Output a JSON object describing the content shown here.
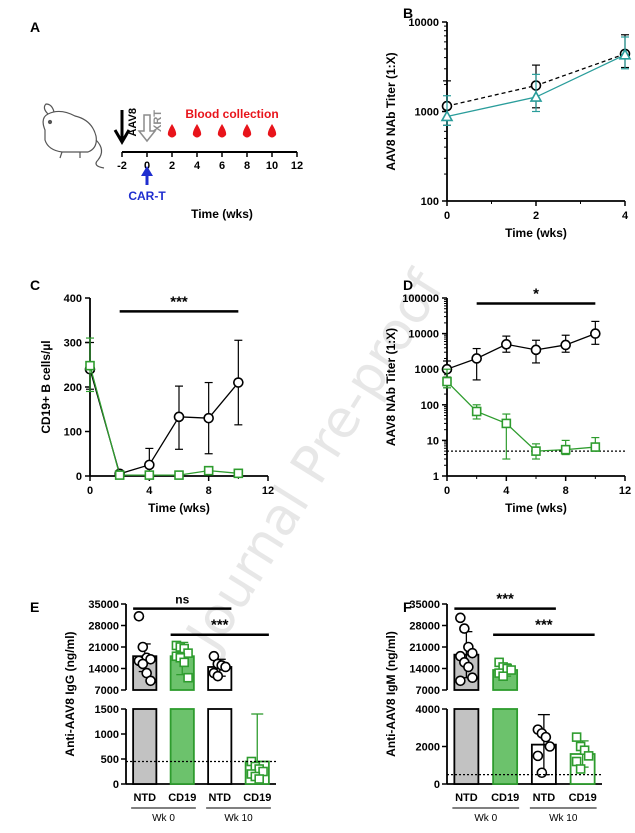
{
  "watermark": "Journal Pre-proof",
  "panel_a": {
    "label": "A",
    "aav8": "AAV8",
    "xrt": "XRT",
    "blood": "Blood collection",
    "cart": "CAR-T",
    "xlabel": "Time (wks)",
    "ticks": [
      "-2",
      "0",
      "2",
      "4",
      "6",
      "8",
      "10",
      "12"
    ],
    "drop_weeks": [
      2,
      4,
      6,
      8,
      10
    ],
    "colors": {
      "blood": "#e8141b",
      "cart": "#1f2ecf",
      "xrt": "#8c8c8c"
    }
  },
  "chart_data": [
    {
      "id": "B",
      "label": "B",
      "type": "line",
      "ylabel": "AAV8 NAb Titer (1:X)",
      "xlabel": "Time (wks)",
      "yscale": "log",
      "ylim": [
        100,
        10000
      ],
      "xlim": [
        0,
        4
      ],
      "xticks": [
        "0",
        "2",
        "4"
      ],
      "yticks": [
        "100",
        "1000",
        "10000"
      ],
      "series": [
        {
          "color": "#000000",
          "dashed": true,
          "marker": "circle",
          "x": [
            0,
            2,
            4
          ],
          "y": [
            1150,
            1950,
            4400
          ],
          "err_hi": [
            2200,
            3300,
            7200
          ],
          "err_lo": [
            700,
            1100,
            3100
          ]
        },
        {
          "color": "#2a9d9b",
          "dashed": false,
          "marker": "triangle",
          "x": [
            0,
            2,
            4
          ],
          "y": [
            880,
            1450,
            4300
          ],
          "err_hi": [
            1500,
            2600,
            6800
          ],
          "err_lo": [
            700,
            1000,
            3000
          ]
        }
      ]
    },
    {
      "id": "C",
      "label": "C",
      "type": "line",
      "ylabel": "CD19+ B cells/µl",
      "xlabel": "Time (wks)",
      "ylim": [
        0,
        400
      ],
      "xlim": [
        0,
        12
      ],
      "xticks": [
        "0",
        "4",
        "8",
        "12"
      ],
      "yticks": [
        "0",
        "100",
        "200",
        "300",
        "400"
      ],
      "sig": "***",
      "sig_range": [
        2,
        10
      ],
      "sig_y": 370,
      "series": [
        {
          "color": "#000000",
          "marker": "circle",
          "x": [
            0,
            2,
            4,
            6,
            8,
            10
          ],
          "y": [
            240,
            5,
            25,
            133,
            130,
            210
          ],
          "err_hi": [
            300,
            9,
            62,
            202,
            210,
            305
          ],
          "err_lo": [
            195,
            1,
            0,
            60,
            50,
            115
          ]
        },
        {
          "color": "#2e9c2e",
          "marker": "square",
          "x": [
            0,
            2,
            4,
            6,
            8,
            10
          ],
          "y": [
            248,
            2,
            2,
            2,
            12,
            6
          ],
          "err_hi": [
            310,
            4,
            4,
            4,
            18,
            10
          ],
          "err_lo": [
            190,
            0,
            0,
            0,
            6,
            2
          ]
        }
      ]
    },
    {
      "id": "D",
      "label": "D",
      "type": "line",
      "ylabel": "AAV8 NAb Titer (1:X)",
      "xlabel": "Time (wks)",
      "yscale": "log",
      "ylim": [
        1,
        100000
      ],
      "xlim": [
        0,
        12
      ],
      "xticks": [
        "0",
        "4",
        "8",
        "12"
      ],
      "yticks": [
        "1",
        "10",
        "100",
        "1000",
        "10000",
        "100000"
      ],
      "sig": "*",
      "sig_range": [
        2,
        10
      ],
      "sig_y": 70000,
      "dotted_y": 5,
      "series": [
        {
          "color": "#000000",
          "marker": "circle",
          "x": [
            0,
            2,
            4,
            6,
            8,
            10
          ],
          "y": [
            1000,
            2000,
            5000,
            3500,
            4800,
            10000
          ],
          "err_hi": [
            1700,
            3800,
            8500,
            6500,
            9000,
            22000
          ],
          "err_lo": [
            600,
            500,
            3000,
            1500,
            3000,
            5000
          ]
        },
        {
          "color": "#2e9c2e",
          "marker": "square",
          "x": [
            0,
            2,
            4,
            6,
            8,
            10
          ],
          "y": [
            450,
            65,
            30,
            5,
            5.5,
            6.5
          ],
          "err_hi": [
            1000,
            100,
            55,
            8,
            10,
            12
          ],
          "err_lo": [
            300,
            40,
            3,
            3,
            4,
            5
          ]
        }
      ]
    },
    {
      "id": "E",
      "label": "E",
      "type": "bar",
      "ylabel": "Anti-AAV8 IgG (ng/ml)",
      "categories": [
        "NTD",
        "CD19",
        "NTD",
        "CD19"
      ],
      "groups": [
        {
          "label": "Wk 0",
          "span": [
            0,
            1
          ]
        },
        {
          "label": "Wk 10",
          "span": [
            2,
            3
          ]
        }
      ],
      "upper": {
        "range": [
          7000,
          35000
        ],
        "ticks": [
          "7000",
          "14000",
          "21000",
          "28000",
          "35000"
        ]
      },
      "lower": {
        "range": [
          0,
          1500
        ],
        "ticks": [
          "0",
          "500",
          "1000",
          "1500"
        ]
      },
      "dotted_y": 450,
      "values": [
        18000,
        18000,
        14500,
        450
      ],
      "err_hi": [
        22000,
        22500,
        17000,
        1400
      ],
      "err_lo": [
        13000,
        12000,
        11500,
        150
      ],
      "fills": [
        "#c2c2c2",
        "#6cc26c",
        "#ffffff",
        "#ffffff"
      ],
      "edges": [
        "#000000",
        "#2e9c2e",
        "#000000",
        "#2e9c2e"
      ],
      "points": [
        [
          31000,
          21000,
          17500,
          17000,
          16500,
          15500,
          12500,
          10000
        ],
        [
          21500,
          21000,
          20500,
          19000,
          18000,
          17500,
          16000,
          11000
        ],
        [
          18000,
          15500,
          15000,
          14500,
          12500,
          11500
        ],
        [
          450,
          350,
          300,
          250,
          200,
          150,
          100
        ]
      ],
      "comparisons": [
        {
          "label": "ns",
          "from": 0,
          "to": 2,
          "y": 33500
        },
        {
          "label": "***",
          "from": 1,
          "to": 3,
          "y": 25000
        }
      ]
    },
    {
      "id": "F",
      "label": "F",
      "type": "bar",
      "ylabel": "Anti-AAV8 IgM (ng/ml)",
      "categories": [
        "NTD",
        "CD19",
        "NTD",
        "CD19"
      ],
      "groups": [
        {
          "label": "Wk 0",
          "span": [
            0,
            1
          ]
        },
        {
          "label": "Wk 10",
          "span": [
            2,
            3
          ]
        }
      ],
      "upper": {
        "range": [
          7000,
          35000
        ],
        "ticks": [
          "7000",
          "14000",
          "21000",
          "28000",
          "35000"
        ]
      },
      "lower": {
        "range": [
          0,
          4000
        ],
        "ticks": [
          "0",
          "2000",
          "4000"
        ]
      },
      "dotted_y": 500,
      "values": [
        18500,
        13500,
        2100,
        1600
      ],
      "err_hi": [
        26000,
        15500,
        3700,
        2300
      ],
      "err_lo": [
        11000,
        11500,
        500,
        900
      ],
      "fills": [
        "#c2c2c2",
        "#6cc26c",
        "#ffffff",
        "#ffffff"
      ],
      "edges": [
        "#000000",
        "#2e9c2e",
        "#000000",
        "#2e9c2e"
      ],
      "points": [
        [
          30500,
          27000,
          21000,
          19000,
          18000,
          16000,
          14500,
          11000,
          10000
        ],
        [
          16000,
          14500,
          14000,
          13500,
          12500,
          11500
        ],
        [
          2900,
          2700,
          2500,
          2000,
          1500,
          600
        ],
        [
          2500,
          2000,
          1800,
          1500,
          1200,
          800
        ]
      ],
      "comparisons": [
        {
          "label": "***",
          "from": 0,
          "to": 2,
          "y": 33500
        },
        {
          "label": "***",
          "from": 1,
          "to": 3,
          "y": 25000
        }
      ]
    }
  ]
}
